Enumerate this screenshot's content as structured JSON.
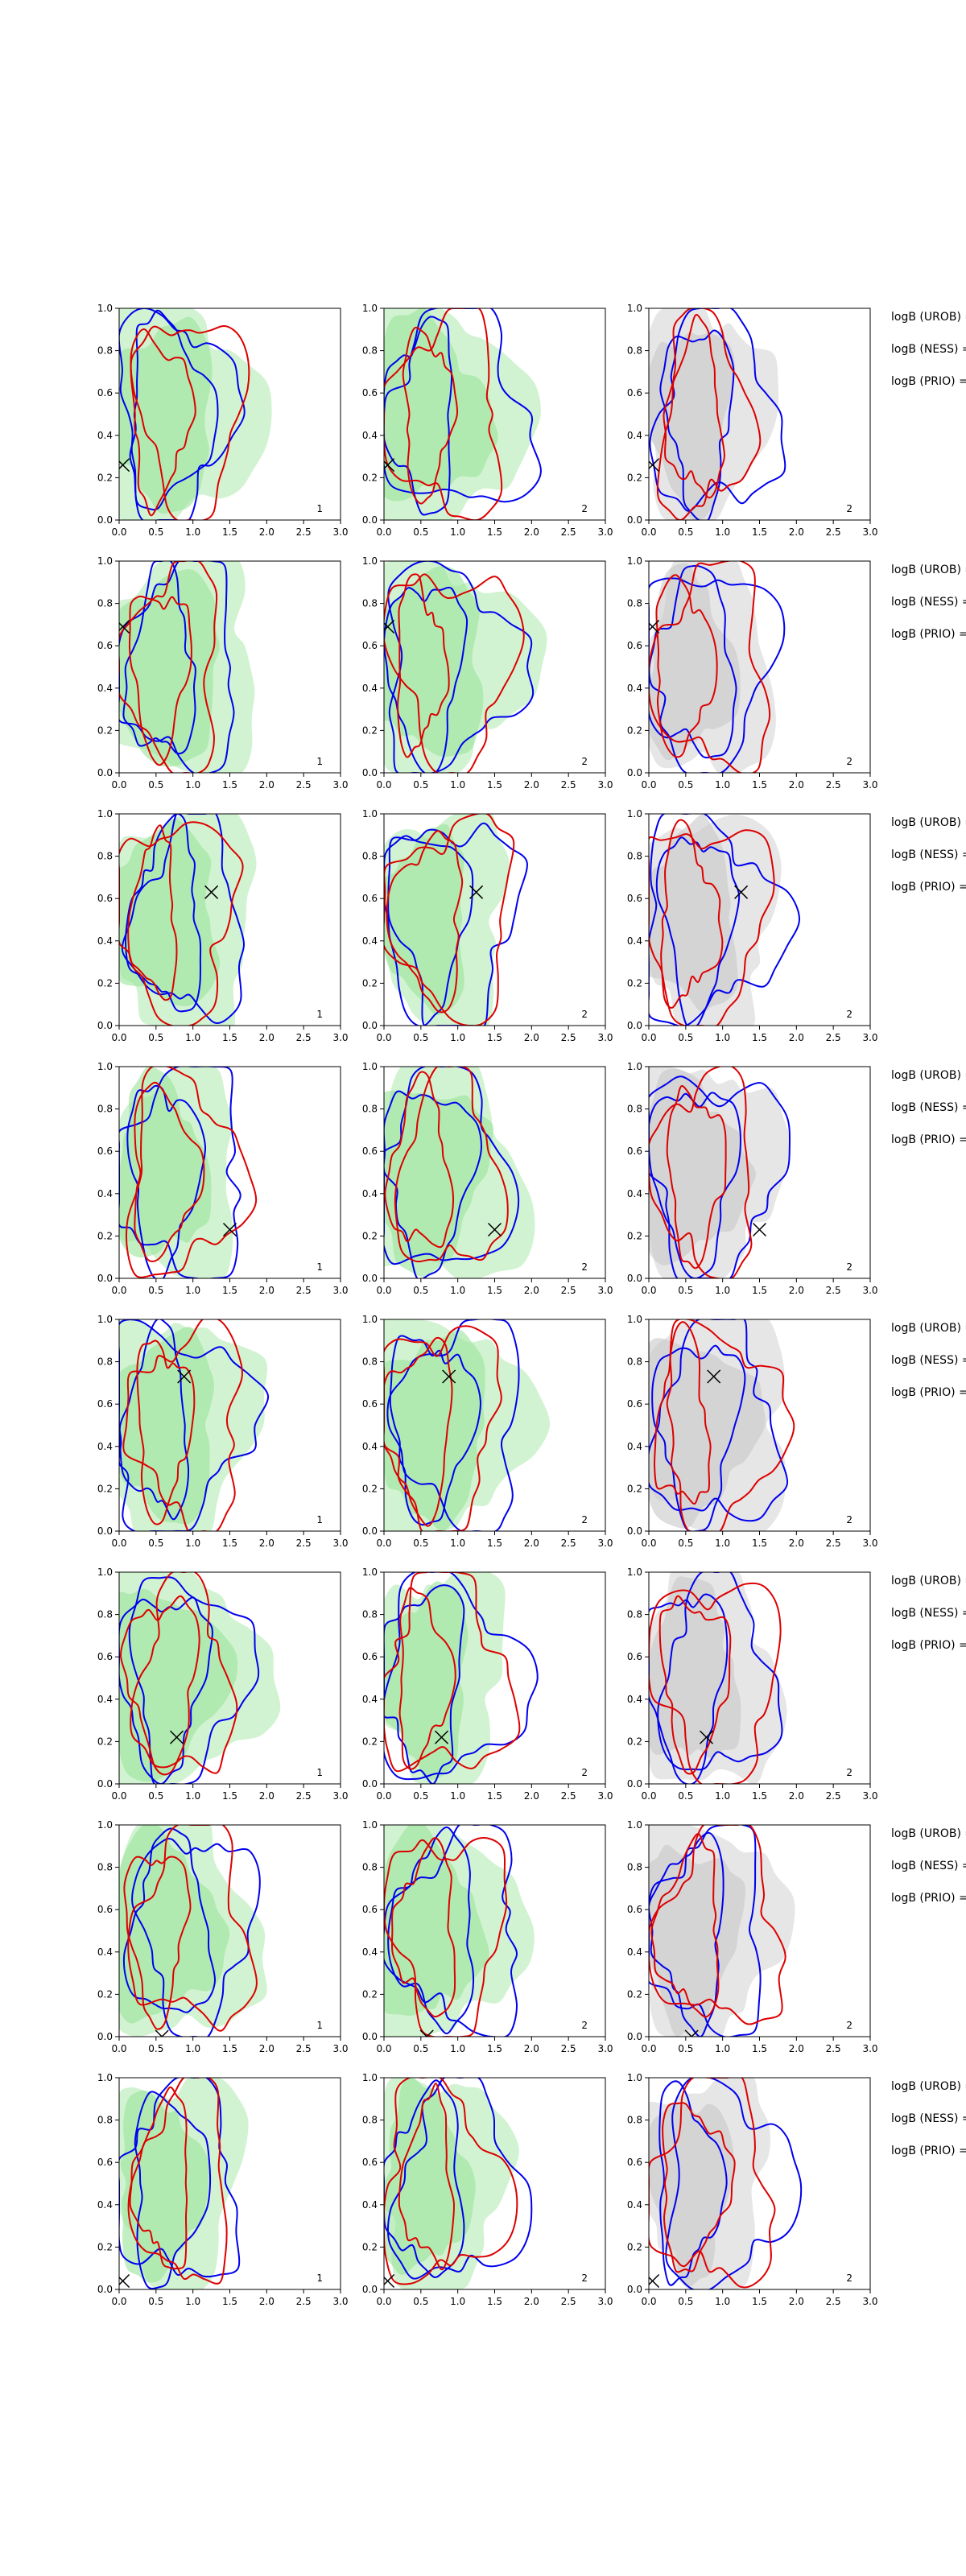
{
  "figure": {
    "rows": 8,
    "columns": 3,
    "panel_id_labels": [
      "1",
      "2",
      "2"
    ],
    "side_labels": [
      "logB (UROB) =",
      "logB (NESS) =",
      "logB (PRIO) ="
    ]
  },
  "colors": {
    "green_fill": "#99e599",
    "grey_fill": "#c8c8c8",
    "blue_line": "#0000ee",
    "red_line": "#dd0000",
    "marker": "#000000"
  },
  "chart_data": {
    "type": "contour",
    "xlim": [
      0.0,
      3.0
    ],
    "ylim": [
      0.0,
      1.0
    ],
    "x_ticks": [
      "0.0",
      "0.5",
      "1.0",
      "1.5",
      "2.0",
      "2.5",
      "3.0"
    ],
    "y_ticks": [
      "0.0",
      "0.2",
      "0.4",
      "0.6",
      "0.8",
      "1.0"
    ],
    "markers": [
      {
        "row": 1,
        "x": 0.05,
        "y": 0.26
      },
      {
        "row": 2,
        "x": 0.05,
        "y": 0.69
      },
      {
        "row": 3,
        "x": 1.25,
        "y": 0.63
      },
      {
        "row": 4,
        "x": 1.5,
        "y": 0.23
      },
      {
        "row": 5,
        "x": 0.88,
        "y": 0.73
      },
      {
        "row": 6,
        "x": 0.78,
        "y": 0.22
      },
      {
        "row": 7,
        "x": 0.58,
        "y": 0.0
      },
      {
        "row": 8,
        "x": 0.05,
        "y": 0.04
      }
    ]
  }
}
